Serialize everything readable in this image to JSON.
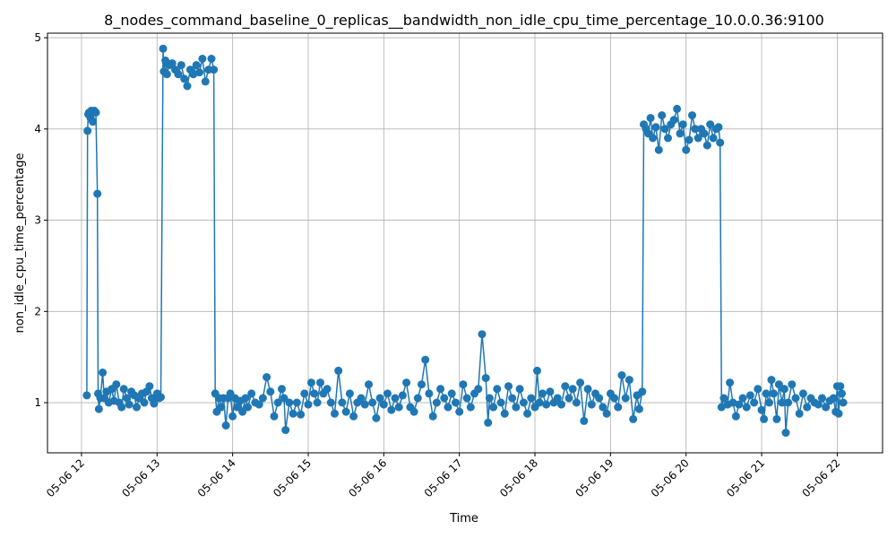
{
  "chart_data": {
    "type": "line",
    "title": "8_nodes_command_baseline_0_replicas__bandwidth_non_idle_cpu_time_percentage_10.0.0.36:9100",
    "xlabel": "Time",
    "ylabel": "non_idle_cpu_time_percentage",
    "x_tick_labels": [
      "05-06 12",
      "05-06 13",
      "05-06 14",
      "05-06 15",
      "05-06 16",
      "05-06 17",
      "05-06 18",
      "05-06 19",
      "05-06 20",
      "05-06 21",
      "05-06 22"
    ],
    "y_ticks": [
      1,
      2,
      3,
      4,
      5
    ],
    "xlim_hours": [
      11.55,
      22.6
    ],
    "ylim": [
      0.45,
      5.05
    ],
    "grid": true,
    "color": "#1f77b4",
    "series": [
      {
        "points": [
          [
            12.07,
            1.08
          ],
          [
            12.08,
            3.98
          ],
          [
            12.09,
            4.16
          ],
          [
            12.1,
            4.18
          ],
          [
            12.12,
            4.12
          ],
          [
            12.13,
            4.2
          ],
          [
            12.15,
            4.08
          ],
          [
            12.17,
            4.2
          ],
          [
            12.19,
            4.18
          ],
          [
            12.21,
            3.29
          ],
          [
            12.22,
            1.1
          ],
          [
            12.23,
            0.93
          ],
          [
            12.25,
            1.05
          ],
          [
            12.28,
            1.33
          ],
          [
            12.3,
            1.05
          ],
          [
            12.33,
            1.12
          ],
          [
            12.36,
            1.0
          ],
          [
            12.4,
            1.15
          ],
          [
            12.43,
            1.02
          ],
          [
            12.46,
            1.2
          ],
          [
            12.5,
            1.0
          ],
          [
            12.53,
            0.95
          ],
          [
            12.56,
            1.15
          ],
          [
            12.6,
            1.05
          ],
          [
            12.63,
            0.98
          ],
          [
            12.66,
            1.12
          ],
          [
            12.7,
            1.08
          ],
          [
            12.73,
            0.95
          ],
          [
            12.76,
            1.05
          ],
          [
            12.8,
            1.1
          ],
          [
            12.83,
            1.0
          ],
          [
            12.86,
            1.12
          ],
          [
            12.9,
            1.18
          ],
          [
            12.93,
            1.05
          ],
          [
            12.96,
            0.99
          ],
          [
            13.0,
            1.1
          ],
          [
            13.03,
            1.05
          ],
          [
            13.05,
            1.06
          ],
          [
            13.08,
            4.88
          ],
          [
            13.09,
            4.63
          ],
          [
            13.11,
            4.75
          ],
          [
            13.13,
            4.6
          ],
          [
            13.16,
            4.7
          ],
          [
            13.2,
            4.72
          ],
          [
            13.24,
            4.65
          ],
          [
            13.28,
            4.6
          ],
          [
            13.32,
            4.7
          ],
          [
            13.36,
            4.55
          ],
          [
            13.4,
            4.47
          ],
          [
            13.44,
            4.65
          ],
          [
            13.48,
            4.6
          ],
          [
            13.52,
            4.7
          ],
          [
            13.56,
            4.62
          ],
          [
            13.6,
            4.77
          ],
          [
            13.64,
            4.52
          ],
          [
            13.68,
            4.65
          ],
          [
            13.72,
            4.77
          ],
          [
            13.75,
            4.65
          ],
          [
            13.77,
            1.1
          ],
          [
            13.79,
            0.9
          ],
          [
            13.82,
            1.05
          ],
          [
            13.85,
            0.95
          ],
          [
            13.88,
            1.05
          ],
          [
            13.91,
            0.75
          ],
          [
            13.94,
            1.05
          ],
          [
            13.97,
            1.1
          ],
          [
            14.0,
            0.85
          ],
          [
            14.03,
            1.05
          ],
          [
            14.06,
            0.95
          ],
          [
            14.1,
            1.02
          ],
          [
            14.13,
            0.9
          ],
          [
            14.17,
            1.05
          ],
          [
            14.2,
            0.95
          ],
          [
            14.25,
            1.1
          ],
          [
            14.3,
            1.0
          ],
          [
            14.35,
            0.98
          ],
          [
            14.4,
            1.05
          ],
          [
            14.45,
            1.28
          ],
          [
            14.5,
            1.12
          ],
          [
            14.55,
            0.85
          ],
          [
            14.6,
            1.0
          ],
          [
            14.65,
            1.15
          ],
          [
            14.68,
            1.05
          ],
          [
            14.7,
            0.7
          ],
          [
            14.75,
            1.0
          ],
          [
            14.8,
            0.88
          ],
          [
            14.85,
            1.0
          ],
          [
            14.9,
            0.87
          ],
          [
            14.95,
            1.1
          ],
          [
            15.0,
            0.98
          ],
          [
            15.04,
            1.22
          ],
          [
            15.08,
            1.1
          ],
          [
            15.12,
            1.0
          ],
          [
            15.16,
            1.22
          ],
          [
            15.2,
            1.1
          ],
          [
            15.25,
            1.15
          ],
          [
            15.3,
            1.0
          ],
          [
            15.35,
            0.88
          ],
          [
            15.4,
            1.35
          ],
          [
            15.45,
            1.0
          ],
          [
            15.5,
            0.9
          ],
          [
            15.55,
            1.1
          ],
          [
            15.6,
            0.85
          ],
          [
            15.65,
            1.0
          ],
          [
            15.7,
            1.05
          ],
          [
            15.75,
            0.98
          ],
          [
            15.8,
            1.2
          ],
          [
            15.85,
            1.0
          ],
          [
            15.9,
            0.83
          ],
          [
            15.95,
            1.05
          ],
          [
            16.0,
            0.98
          ],
          [
            16.05,
            1.1
          ],
          [
            16.1,
            0.92
          ],
          [
            16.15,
            1.05
          ],
          [
            16.2,
            0.95
          ],
          [
            16.25,
            1.08
          ],
          [
            16.3,
            1.22
          ],
          [
            16.35,
            0.95
          ],
          [
            16.4,
            0.9
          ],
          [
            16.45,
            1.05
          ],
          [
            16.5,
            1.2
          ],
          [
            16.55,
            1.47
          ],
          [
            16.6,
            1.1
          ],
          [
            16.65,
            0.85
          ],
          [
            16.7,
            1.0
          ],
          [
            16.75,
            1.15
          ],
          [
            16.8,
            1.05
          ],
          [
            16.85,
            0.95
          ],
          [
            16.9,
            1.1
          ],
          [
            16.95,
            1.0
          ],
          [
            17.0,
            0.9
          ],
          [
            17.05,
            1.2
          ],
          [
            17.1,
            1.05
          ],
          [
            17.15,
            0.95
          ],
          [
            17.2,
            1.1
          ],
          [
            17.25,
            1.15
          ],
          [
            17.3,
            1.75
          ],
          [
            17.35,
            1.27
          ],
          [
            17.38,
            0.78
          ],
          [
            17.4,
            1.05
          ],
          [
            17.45,
            0.95
          ],
          [
            17.5,
            1.15
          ],
          [
            17.55,
            1.0
          ],
          [
            17.6,
            0.88
          ],
          [
            17.65,
            1.18
          ],
          [
            17.7,
            1.05
          ],
          [
            17.75,
            0.95
          ],
          [
            17.8,
            1.15
          ],
          [
            17.85,
            1.0
          ],
          [
            17.9,
            0.88
          ],
          [
            17.95,
            1.05
          ],
          [
            18.0,
            0.95
          ],
          [
            18.03,
            1.35
          ],
          [
            18.06,
            1.0
          ],
          [
            18.1,
            1.1
          ],
          [
            18.15,
            0.98
          ],
          [
            18.2,
            1.12
          ],
          [
            18.25,
            1.0
          ],
          [
            18.3,
            1.05
          ],
          [
            18.35,
            0.98
          ],
          [
            18.4,
            1.18
          ],
          [
            18.45,
            1.05
          ],
          [
            18.5,
            1.15
          ],
          [
            18.55,
            1.0
          ],
          [
            18.6,
            1.22
          ],
          [
            18.65,
            0.8
          ],
          [
            18.7,
            1.15
          ],
          [
            18.75,
            0.98
          ],
          [
            18.8,
            1.1
          ],
          [
            18.85,
            1.05
          ],
          [
            18.9,
            0.95
          ],
          [
            18.95,
            0.88
          ],
          [
            19.0,
            1.1
          ],
          [
            19.05,
            1.05
          ],
          [
            19.1,
            0.95
          ],
          [
            19.15,
            1.3
          ],
          [
            19.2,
            1.05
          ],
          [
            19.25,
            1.25
          ],
          [
            19.3,
            0.82
          ],
          [
            19.35,
            1.08
          ],
          [
            19.38,
            0.93
          ],
          [
            19.42,
            1.12
          ],
          [
            19.44,
            4.05
          ],
          [
            19.47,
            4.0
          ],
          [
            19.5,
            3.95
          ],
          [
            19.53,
            4.12
          ],
          [
            19.56,
            3.9
          ],
          [
            19.6,
            4.02
          ],
          [
            19.64,
            3.77
          ],
          [
            19.68,
            4.15
          ],
          [
            19.72,
            4.0
          ],
          [
            19.76,
            3.9
          ],
          [
            19.8,
            4.05
          ],
          [
            19.84,
            4.1
          ],
          [
            19.88,
            4.22
          ],
          [
            19.92,
            3.95
          ],
          [
            19.96,
            4.05
          ],
          [
            20.0,
            3.77
          ],
          [
            20.04,
            3.88
          ],
          [
            20.08,
            4.15
          ],
          [
            20.12,
            4.0
          ],
          [
            20.16,
            3.9
          ],
          [
            20.2,
            4.0
          ],
          [
            20.24,
            3.95
          ],
          [
            20.28,
            3.82
          ],
          [
            20.32,
            4.05
          ],
          [
            20.36,
            3.9
          ],
          [
            20.4,
            4.0
          ],
          [
            20.43,
            4.02
          ],
          [
            20.45,
            3.85
          ],
          [
            20.47,
            0.95
          ],
          [
            20.5,
            1.05
          ],
          [
            20.55,
            0.98
          ],
          [
            20.58,
            1.22
          ],
          [
            20.62,
            1.0
          ],
          [
            20.66,
            0.85
          ],
          [
            20.7,
            0.98
          ],
          [
            20.75,
            1.05
          ],
          [
            20.8,
            0.95
          ],
          [
            20.85,
            1.08
          ],
          [
            20.9,
            1.0
          ],
          [
            20.95,
            1.15
          ],
          [
            21.0,
            0.92
          ],
          [
            21.03,
            0.82
          ],
          [
            21.06,
            1.1
          ],
          [
            21.1,
            1.0
          ],
          [
            21.13,
            1.25
          ],
          [
            21.16,
            1.1
          ],
          [
            21.2,
            0.82
          ],
          [
            21.23,
            1.2
          ],
          [
            21.27,
            1.0
          ],
          [
            21.3,
            1.15
          ],
          [
            21.32,
            0.67
          ],
          [
            21.35,
            1.0
          ],
          [
            21.4,
            1.2
          ],
          [
            21.45,
            1.05
          ],
          [
            21.5,
            0.88
          ],
          [
            21.55,
            1.1
          ],
          [
            21.6,
            0.95
          ],
          [
            21.65,
            1.05
          ],
          [
            21.7,
            1.0
          ],
          [
            21.75,
            0.98
          ],
          [
            21.8,
            1.05
          ],
          [
            21.85,
            0.95
          ],
          [
            21.9,
            1.02
          ],
          [
            21.95,
            1.05
          ],
          [
            21.98,
            0.9
          ],
          [
            22.0,
            1.18
          ],
          [
            22.02,
            0.88
          ],
          [
            22.04,
            1.18
          ],
          [
            22.06,
            1.1
          ],
          [
            22.08,
            1.0
          ]
        ]
      }
    ]
  }
}
